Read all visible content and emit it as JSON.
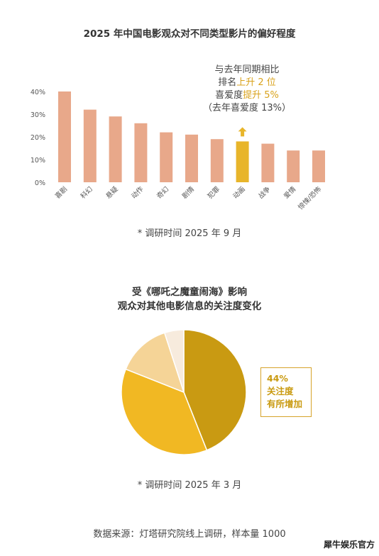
{
  "bar_title": "2025 年中国电影观众对不同类型影片的偏好程度",
  "callout": {
    "line1": "与去年同期相比",
    "line2_prefix": "排名",
    "line2_value": "上升 2 位",
    "line3_prefix": "喜爱度",
    "line3_value": "提升 5%",
    "line4": "（去年喜爱度 13%）"
  },
  "bar_note": "* 调研时间 2025 年 9 月",
  "pie_title_line1": "受《哪吒之魔童闹海》影响",
  "pie_title_line2": "观众对其他电影信息的关注度变化",
  "pie_legend": {
    "percent": "44%",
    "line1": "关注度",
    "line2": "有所增加"
  },
  "pie_note": "* 调研时间 2025 年 3 月",
  "source": "数据来源：灯塔研究院线上调研，样本量 1000",
  "watermark": "犀牛娱乐官方",
  "colors": {
    "bar": "#E8A88A",
    "highlight_bar": "#E8B52A",
    "arrow": "#E8B52A",
    "pie": [
      "#C99A12",
      "#F1B823",
      "#F5D497",
      "#F7EBDD"
    ],
    "legend_text": "#C99A10"
  },
  "chart_data": [
    {
      "type": "bar",
      "categories": [
        "喜剧",
        "科幻",
        "悬疑",
        "动作",
        "奇幻",
        "剧情",
        "犯罪",
        "动画",
        "战争",
        "爱情",
        "惊悚/恐怖"
      ],
      "values": [
        40,
        32,
        29,
        26,
        22,
        21,
        19,
        18,
        17,
        14,
        14
      ],
      "highlight": "动画",
      "yticks": [
        "0%",
        "10%",
        "20%",
        "30%",
        "40%"
      ],
      "ylim": [
        0,
        40
      ],
      "title": "2025 年中国电影观众对不同类型影片的偏好程度"
    },
    {
      "type": "pie",
      "values": [
        44,
        37,
        14,
        5
      ],
      "labeled_slice": "44%"
    }
  ]
}
